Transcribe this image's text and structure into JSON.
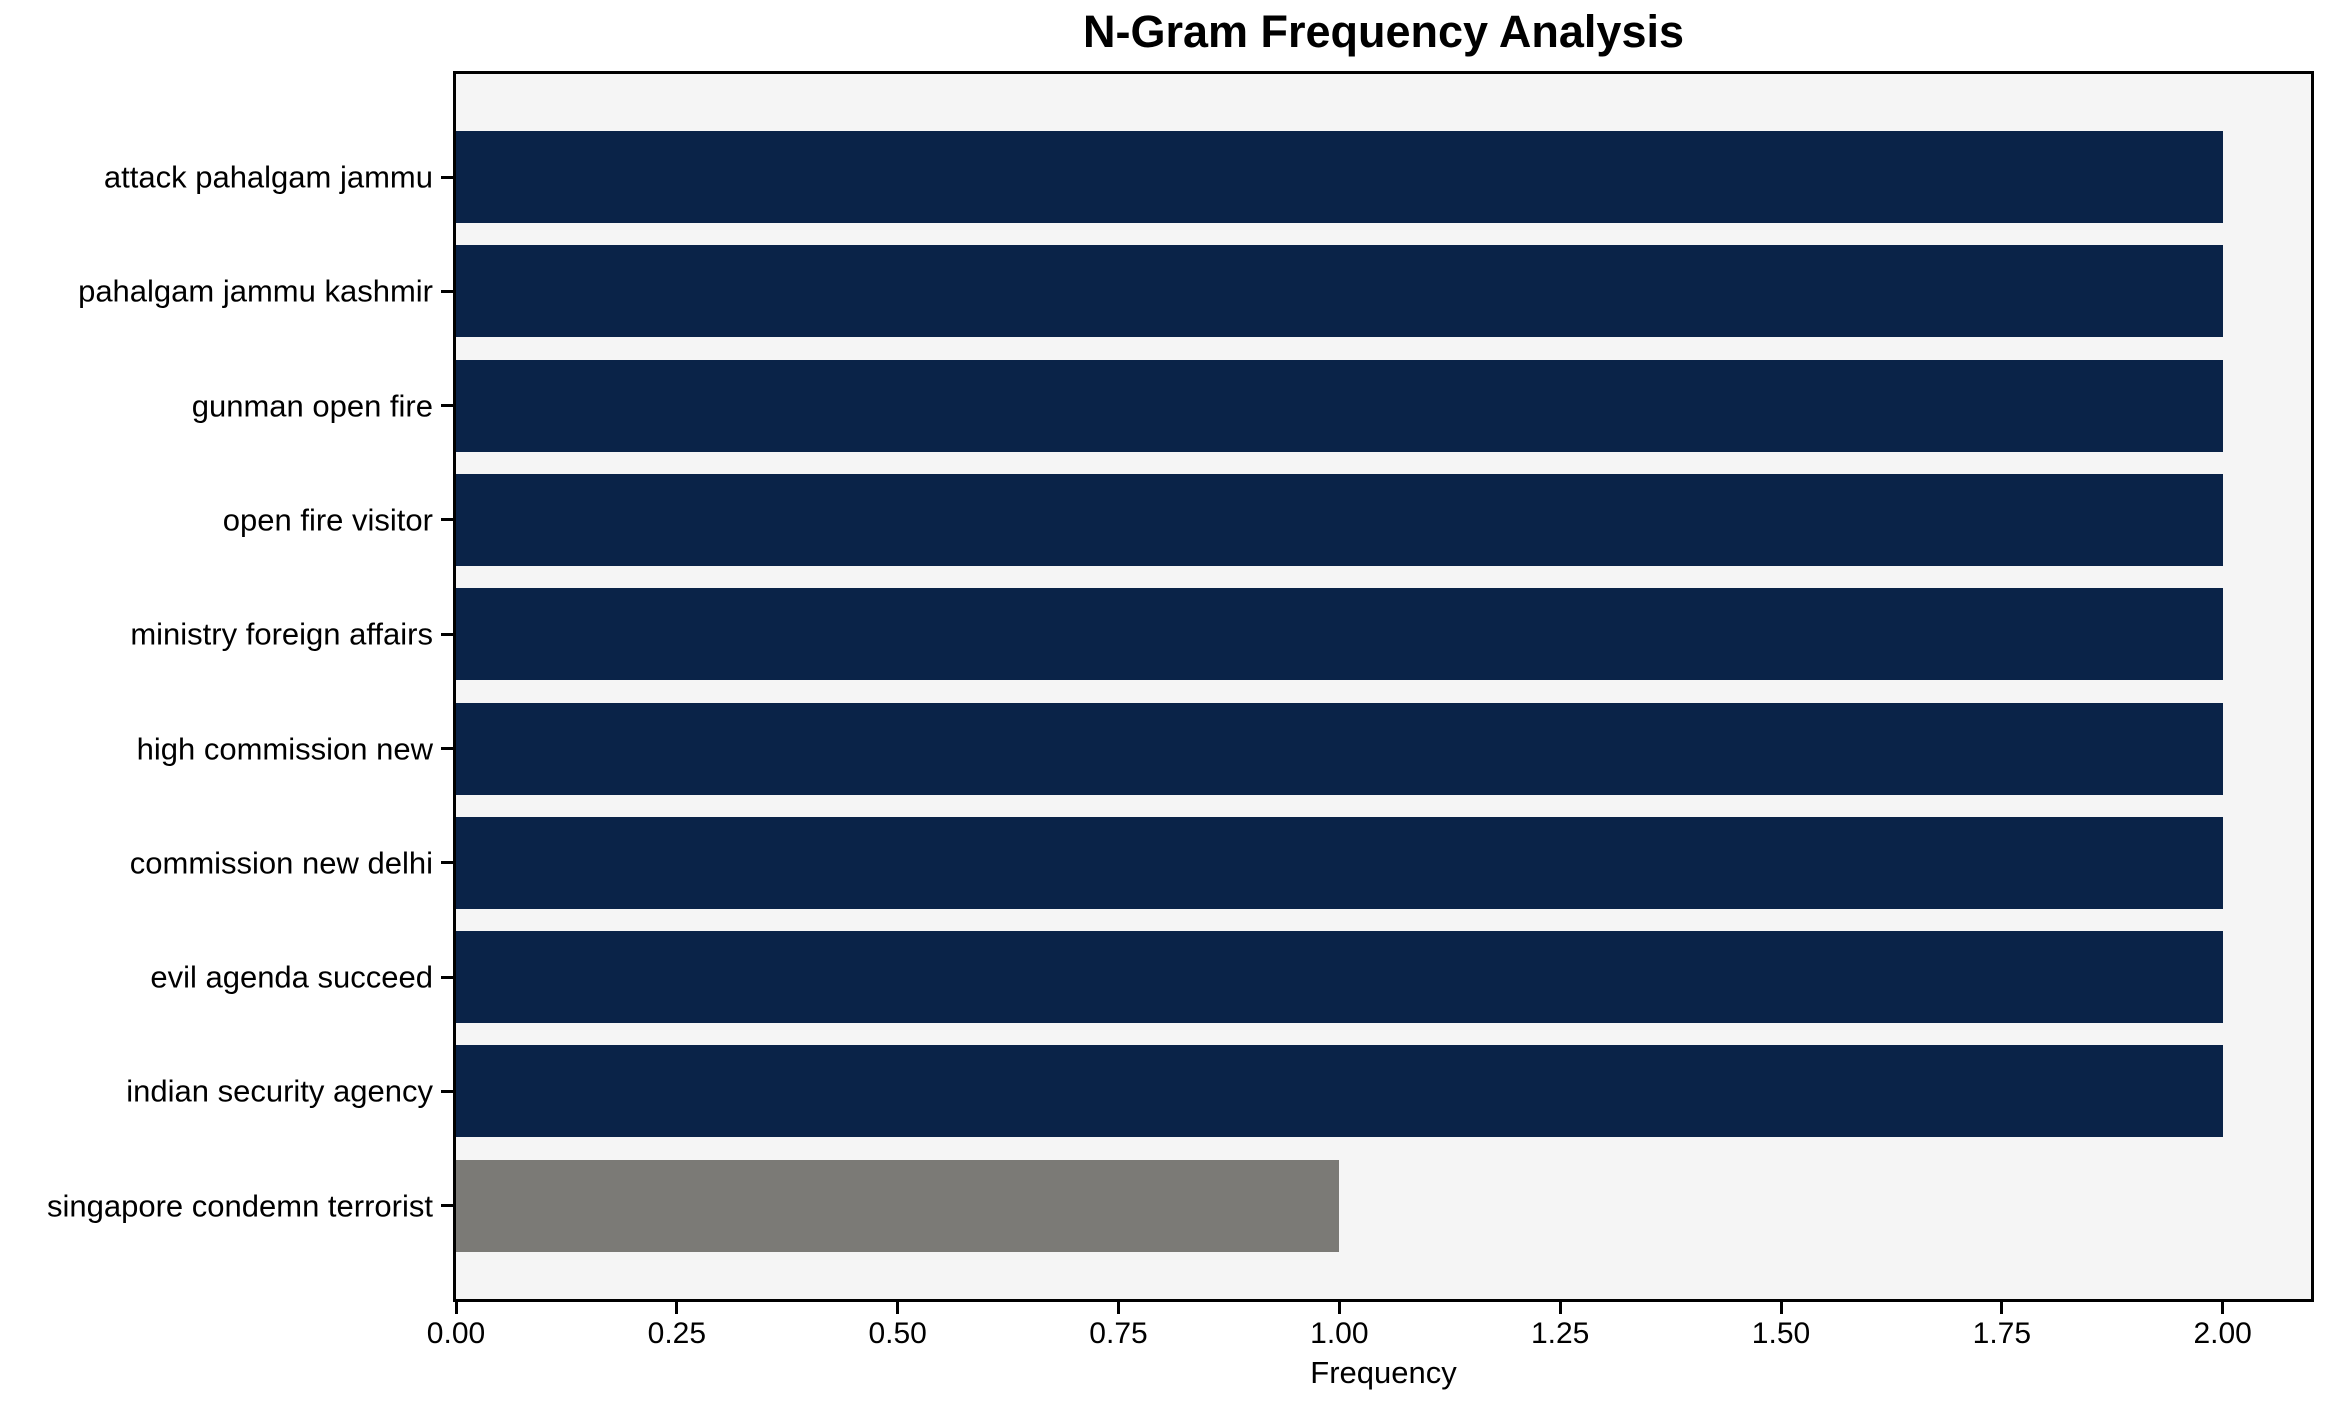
{
  "title": "N-Gram Frequency Analysis",
  "chart_data": {
    "type": "bar",
    "orientation": "horizontal",
    "title": "N-Gram Frequency Analysis",
    "xlabel": "Frequency",
    "ylabel": "",
    "categories": [
      "attack pahalgam jammu",
      "pahalgam jammu kashmir",
      "gunman open fire",
      "open fire visitor",
      "ministry foreign affairs",
      "high commission new",
      "commission new delhi",
      "evil agenda succeed",
      "indian security agency",
      "singapore condemn terrorist"
    ],
    "values": [
      2,
      2,
      2,
      2,
      2,
      2,
      2,
      2,
      2,
      1
    ],
    "bar_colors": [
      "#0a2348",
      "#0a2348",
      "#0a2348",
      "#0a2348",
      "#0a2348",
      "#0a2348",
      "#0a2348",
      "#0a2348",
      "#0a2348",
      "#7b7a76"
    ],
    "xlim": [
      0,
      2.1
    ],
    "xticks": [
      0,
      0.25,
      0.5,
      0.75,
      1,
      1.25,
      1.5,
      1.75,
      2
    ],
    "xtick_labels": [
      "0.00",
      "0.25",
      "0.50",
      "0.75",
      "1.00",
      "1.25",
      "1.50",
      "1.75",
      "2.00"
    ],
    "grid": false,
    "legend": null,
    "plot_background": "#f5f5f5",
    "spine_color": "#000000",
    "text_color": "#000000"
  }
}
